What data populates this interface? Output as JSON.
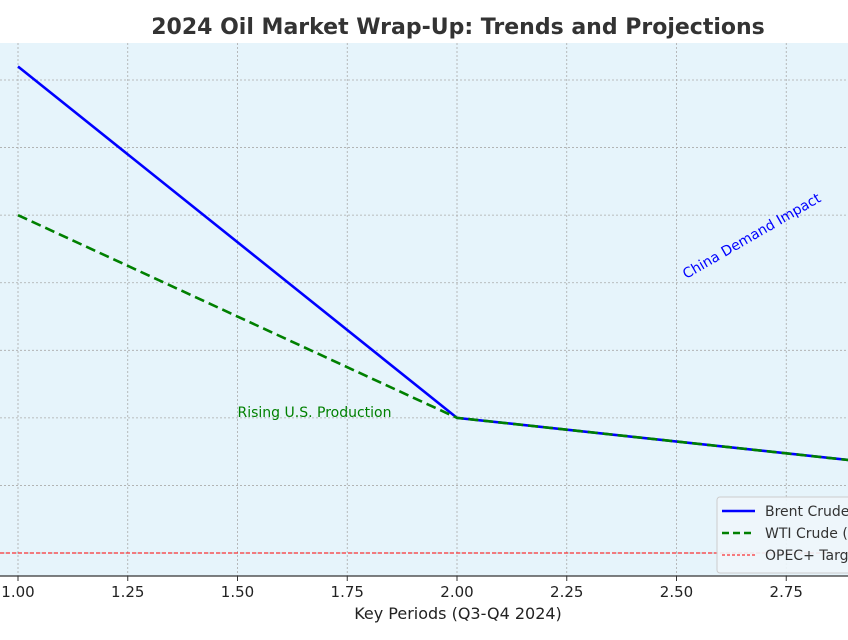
{
  "chart_data": {
    "type": "line",
    "title": "2024 Oil Market Wrap-Up: Trends and Projections",
    "xlabel": "Key Periods (Q3-Q4 2024)",
    "ylabel": "",
    "x": [
      1,
      2,
      3
    ],
    "x_ticks": [
      "1.00",
      "1.25",
      "1.50",
      "1.75",
      "2.00",
      "2.25",
      "2.50",
      "2.75"
    ],
    "xlim": [
      0.96,
      2.89
    ],
    "ylim": [
      69.66,
      77.55
    ],
    "y_grid": [
      70,
      71,
      72,
      73,
      74,
      75,
      76,
      77
    ],
    "grid": true,
    "series": [
      {
        "name": "Brent Crude",
        "legend_text": "Brent Crude",
        "values": [
          77.2,
          72.0,
          71.3
        ],
        "color": "#0000ff",
        "style": "solid"
      },
      {
        "name": "WTI Crude",
        "legend_text": "WTI Crude (",
        "values": [
          75.0,
          72.0,
          71.3
        ],
        "color": "#008000",
        "style": "dashed"
      }
    ],
    "reference_lines": [
      {
        "name": "OPEC+ Target",
        "legend_text": "OPEC+ Targ",
        "y": 70,
        "color": "#ff0000",
        "style": "dashed"
      }
    ],
    "annotations": [
      {
        "text": "Rising U.S. Production",
        "x": 1.5,
        "y": 72.0,
        "color": "#008000"
      },
      {
        "text": "China Demand Impact",
        "x": 2.5,
        "y": 74.0,
        "color": "#0000ff",
        "rotation": -30
      }
    ],
    "legend_placement": "lower-right",
    "background": "#e6f4fb"
  }
}
